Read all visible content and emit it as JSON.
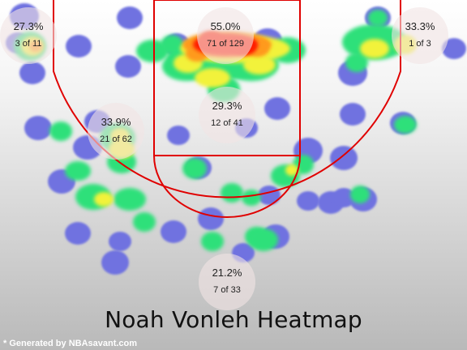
{
  "chart_data": {
    "type": "heatmap",
    "title": "Noah Vonleh Heatmap",
    "credit": "* Generated by NBAsavant.com",
    "colors": {
      "court_lines": "#e00000",
      "cold": "#6f72e0",
      "cool": "#2fe07a",
      "mid": "#f2f23a",
      "warm": "#ff9a1a",
      "hot": "#ff1a00",
      "zone_circle": "#f2e4e4"
    },
    "zones": [
      {
        "id": "left-corner-three",
        "pct": "27.3%",
        "made_att": "3 of 11"
      },
      {
        "id": "restricted-area",
        "pct": "55.0%",
        "made_att": "71 of 129"
      },
      {
        "id": "right-corner-three",
        "pct": "33.3%",
        "made_att": "1 of 3"
      },
      {
        "id": "paint-non-ra",
        "pct": "29.3%",
        "made_att": "12 of 41"
      },
      {
        "id": "mid-range",
        "pct": "33.9%",
        "made_att": "21 of 62"
      },
      {
        "id": "above-break-three",
        "pct": "21.2%",
        "made_att": "7 of 33"
      }
    ]
  }
}
